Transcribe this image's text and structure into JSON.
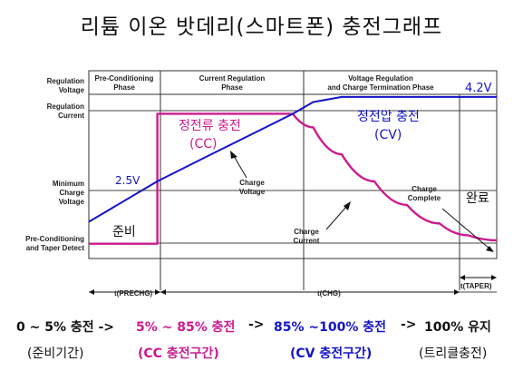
{
  "title": "리튬 이온 밧데리(스마트폰) 충전그래프",
  "chart_data": {
    "type": "line",
    "title": "리튬 이온 밧데리(스마트폰) 충전그래프",
    "y_axis_labels": [
      "Regulation Voltage",
      "Regulation Current",
      "Minimum Charge Voltage",
      "Pre-Conditioning and Taper Detect"
    ],
    "phases": [
      {
        "name": "Pre-Conditioning Phase",
        "note": "준비"
      },
      {
        "name": "Current Regulation Phase",
        "note": "정전류 충전 (CC)"
      },
      {
        "name": "Voltage Regulation and Charge Termination Phase",
        "note": "정전압 충전 (CV)"
      }
    ],
    "annotations": {
      "v_reg": "4.2V",
      "v_min": "2.5V",
      "cc_label_1": "정전류 충전",
      "cc_label_2": "(CC)",
      "cv_label_1": "정전압 충전",
      "cv_label_2": "(CV)",
      "ready": "준비",
      "complete": "완료",
      "charge_voltage": "Charge Voltage",
      "charge_current": "Charge Current",
      "charge_complete": "Charge Complete"
    },
    "x_timing": [
      "t(PRECHG)",
      "t(CHG)",
      "t(TAPER)"
    ],
    "series": [
      {
        "name": "Charge Voltage",
        "color": "#1414c8",
        "points": [
          [
            0,
            0.18
          ],
          [
            0.168,
            0.42
          ],
          [
            0.3,
            0.58
          ],
          [
            0.5,
            0.82
          ],
          [
            0.55,
            0.89
          ],
          [
            0.62,
            0.92
          ],
          [
            1.0,
            0.92
          ]
        ]
      },
      {
        "name": "Charge Current",
        "color": "#cc1a8e",
        "points": [
          [
            0,
            0.05
          ],
          [
            0.168,
            0.05
          ],
          [
            0.168,
            0.82
          ],
          [
            0.5,
            0.82
          ],
          [
            0.55,
            0.74
          ],
          [
            0.62,
            0.58
          ],
          [
            0.7,
            0.42
          ],
          [
            0.78,
            0.28
          ],
          [
            0.86,
            0.17
          ],
          [
            0.93,
            0.1
          ],
          [
            1.0,
            0.07
          ]
        ]
      }
    ]
  },
  "bottom": {
    "s1": "0 ~ 5% 충전 ->",
    "s2": "5% ~ 85% 충전",
    "s2b": "->",
    "s3": "85% ~100% 충전",
    "s3b": "->",
    "s4": "100% 유지",
    "c1": "(준비기간)",
    "c2": "(CC 충전구간)",
    "c3": "(CV 충전구간)",
    "c4": "(트리클충전)"
  }
}
